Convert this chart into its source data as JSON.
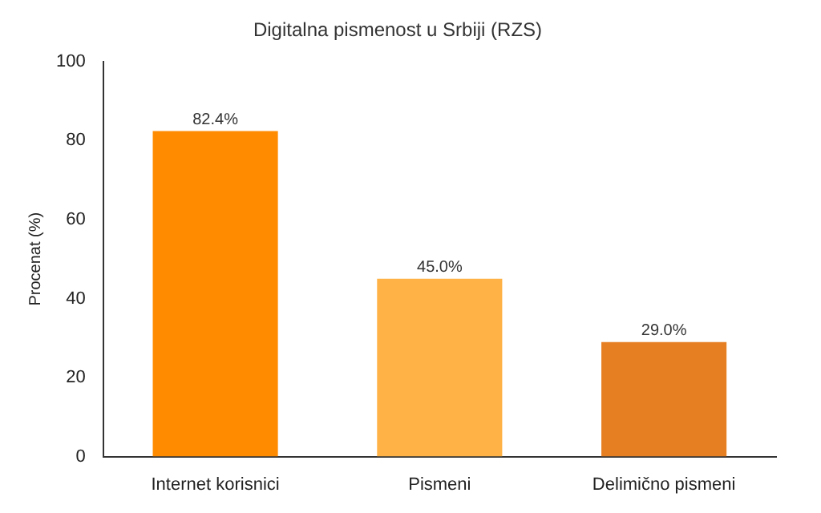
{
  "chart_data": {
    "type": "bar",
    "title": "Digitalna pismenost u Srbiji (RZS)",
    "ylabel": "Procenat (%)",
    "categories": [
      "Internet korisnici",
      "Pismeni",
      "Delimično pismeni"
    ],
    "values": [
      82.4,
      45.0,
      29.0
    ],
    "colors": [
      "#ff8c00",
      "#ffb347",
      "#e67e22"
    ],
    "value_labels": [
      "82.4%",
      "45.0%",
      "29.0%"
    ],
    "ylim": [
      0,
      100
    ],
    "yticks": [
      0,
      20,
      40,
      60,
      80,
      100
    ],
    "grid": false,
    "legend": false
  }
}
